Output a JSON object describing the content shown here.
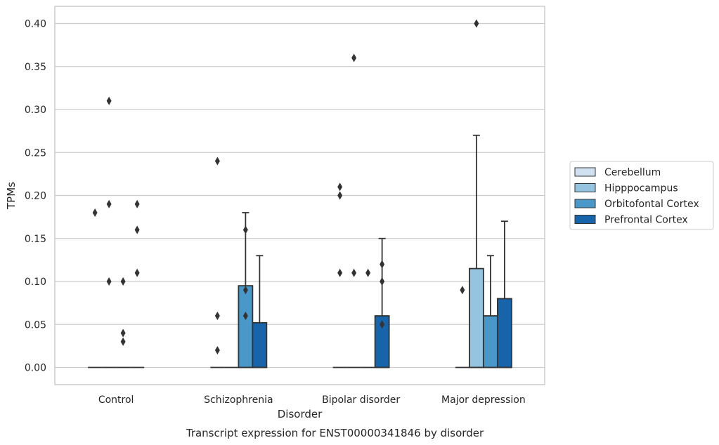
{
  "chart_data": {
    "type": "box",
    "caption": "Transcript expression for ENST00000341846 by disorder",
    "xlabel": "Disorder",
    "ylabel": "TPMs",
    "ylim": [
      -0.02,
      0.42
    ],
    "yticks": [
      "0.00",
      "0.05",
      "0.10",
      "0.15",
      "0.20",
      "0.25",
      "0.30",
      "0.35",
      "0.40"
    ],
    "ytick_values": [
      0,
      0.05,
      0.1,
      0.15,
      0.2,
      0.25,
      0.3,
      0.35,
      0.4
    ],
    "categories": [
      "Control",
      "Schizophrenia",
      "Bipolar disorder",
      "Major depression"
    ],
    "grid": "horizontal",
    "legend_position": "right",
    "series": [
      {
        "name": "Cerebellum",
        "color": "#d0e1f2",
        "boxes": [
          {
            "q1": 0,
            "median": 0,
            "q3": 0,
            "whisker_low": 0,
            "whisker_high": 0,
            "outliers": [
              0.18
            ]
          },
          {
            "q1": 0,
            "median": 0,
            "q3": 0,
            "whisker_low": 0,
            "whisker_high": 0,
            "outliers": [
              0.24,
              0.06,
              0.02
            ]
          },
          {
            "q1": 0,
            "median": 0,
            "q3": 0,
            "whisker_low": 0,
            "whisker_high": 0,
            "outliers": [
              0.21,
              0.2,
              0.11
            ]
          },
          {
            "q1": 0,
            "median": 0,
            "q3": 0,
            "whisker_low": 0,
            "whisker_high": 0,
            "outliers": [
              0.09
            ]
          }
        ]
      },
      {
        "name": "Hipppocampus",
        "color": "#94c4df",
        "boxes": [
          {
            "q1": 0,
            "median": 0,
            "q3": 0,
            "whisker_low": 0,
            "whisker_high": 0,
            "outliers": [
              0.31,
              0.19,
              0.1
            ]
          },
          {
            "q1": 0,
            "median": 0,
            "q3": 0,
            "whisker_low": 0,
            "whisker_high": 0,
            "outliers": []
          },
          {
            "q1": 0,
            "median": 0,
            "q3": 0,
            "whisker_low": 0,
            "whisker_high": 0,
            "outliers": [
              0.36,
              0.11
            ]
          },
          {
            "q1": 0,
            "median": 0,
            "q3": 0.115,
            "whisker_low": 0,
            "whisker_high": 0.27,
            "outliers": [
              0.4
            ]
          }
        ]
      },
      {
        "name": "Orbitofontal Cortex",
        "color": "#4a98c9",
        "boxes": [
          {
            "q1": 0,
            "median": 0,
            "q3": 0,
            "whisker_low": 0,
            "whisker_high": 0,
            "outliers": [
              0.1,
              0.04,
              0.03
            ]
          },
          {
            "q1": 0,
            "median": 0,
            "q3": 0.095,
            "whisker_low": 0,
            "whisker_high": 0.18,
            "outliers": [
              0.16,
              0.09,
              0.06
            ]
          },
          {
            "q1": 0,
            "median": 0,
            "q3": 0,
            "whisker_low": 0,
            "whisker_high": 0,
            "outliers": [
              0.11
            ]
          },
          {
            "q1": 0,
            "median": 0,
            "q3": 0.06,
            "whisker_low": 0,
            "whisker_high": 0.13,
            "outliers": []
          }
        ]
      },
      {
        "name": "Prefrontal Cortex",
        "color": "#1764ab",
        "boxes": [
          {
            "q1": 0,
            "median": 0,
            "q3": 0,
            "whisker_low": 0,
            "whisker_high": 0,
            "outliers": [
              0.19,
              0.16,
              0.11
            ]
          },
          {
            "q1": 0,
            "median": 0,
            "q3": 0.052,
            "whisker_low": 0,
            "whisker_high": 0.13,
            "outliers": []
          },
          {
            "q1": 0,
            "median": 0,
            "q3": 0.06,
            "whisker_low": 0,
            "whisker_high": 0.15,
            "outliers": [
              0.12,
              0.1,
              0.05
            ]
          },
          {
            "q1": 0,
            "median": 0,
            "q3": 0.08,
            "whisker_low": 0,
            "whisker_high": 0.17,
            "outliers": []
          }
        ]
      }
    ]
  }
}
